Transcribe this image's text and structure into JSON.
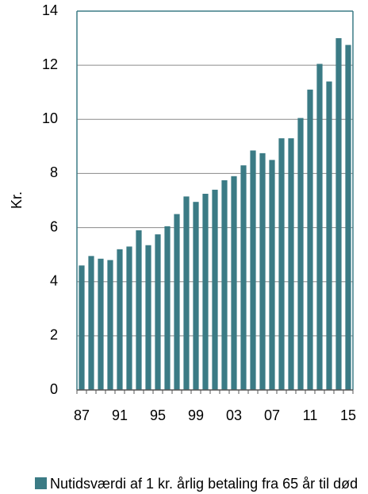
{
  "chart_data": {
    "type": "bar",
    "y_label": "Kr.",
    "categories": [
      "87",
      null,
      null,
      null,
      "91",
      null,
      null,
      null,
      "95",
      null,
      null,
      null,
      "99",
      null,
      null,
      null,
      "03",
      null,
      null,
      null,
      "07",
      null,
      null,
      null,
      "11",
      null,
      null,
      null,
      "15"
    ],
    "series": [
      {
        "name": "Nutidsværdi af 1 kr. årlig betaling fra 65 år til død",
        "color": "#3b7b85",
        "values": [
          4.6,
          4.95,
          4.85,
          4.8,
          5.2,
          5.3,
          5.9,
          5.35,
          5.75,
          6.05,
          6.5,
          7.15,
          6.95,
          7.25,
          7.4,
          7.75,
          7.9,
          8.3,
          8.85,
          8.75,
          8.5,
          9.3,
          9.3,
          10.05,
          11.1,
          12.05,
          11.4,
          13.0,
          12.75
        ]
      }
    ],
    "ylim": [
      0,
      14
    ],
    "yticks": [
      0,
      2,
      4,
      6,
      8,
      10,
      12,
      14
    ],
    "grid": true,
    "legend": "bottom"
  }
}
